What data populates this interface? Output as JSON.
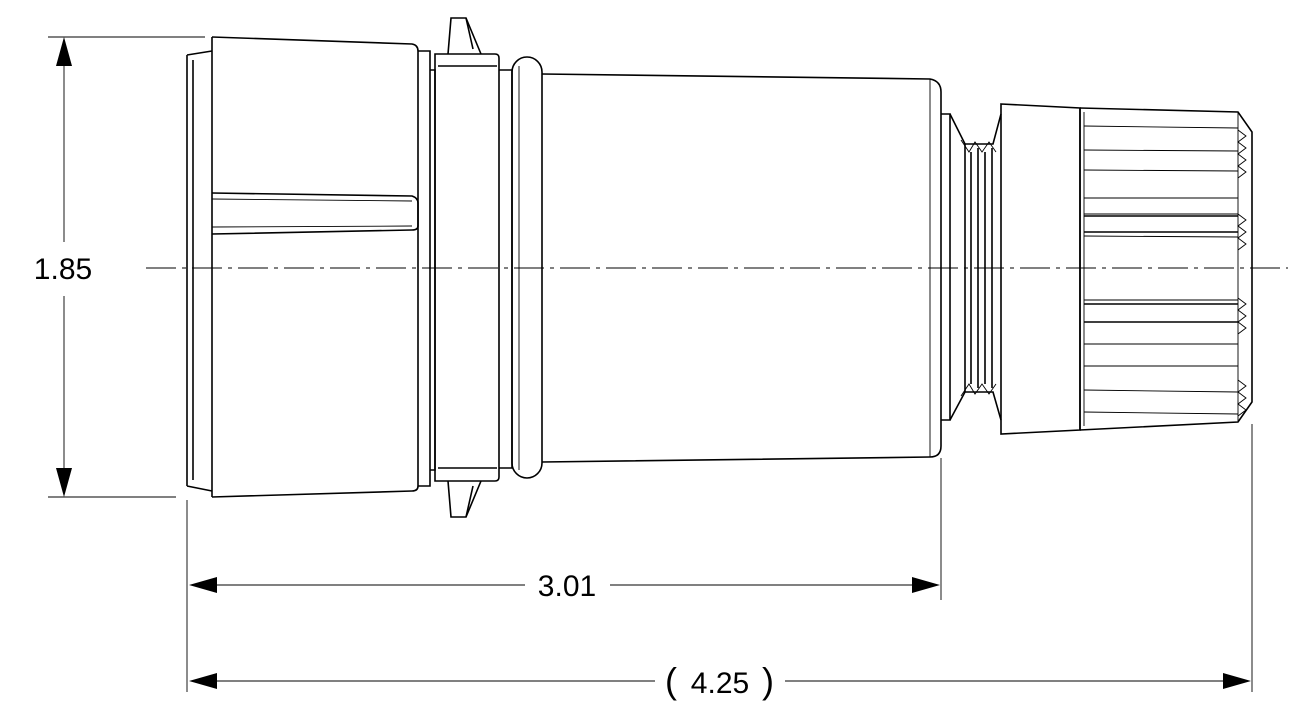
{
  "dimensions": {
    "height": "1.85",
    "body_length": "3.01",
    "overall_length": "4.25",
    "overall_open": "(",
    "overall_close": ")"
  }
}
